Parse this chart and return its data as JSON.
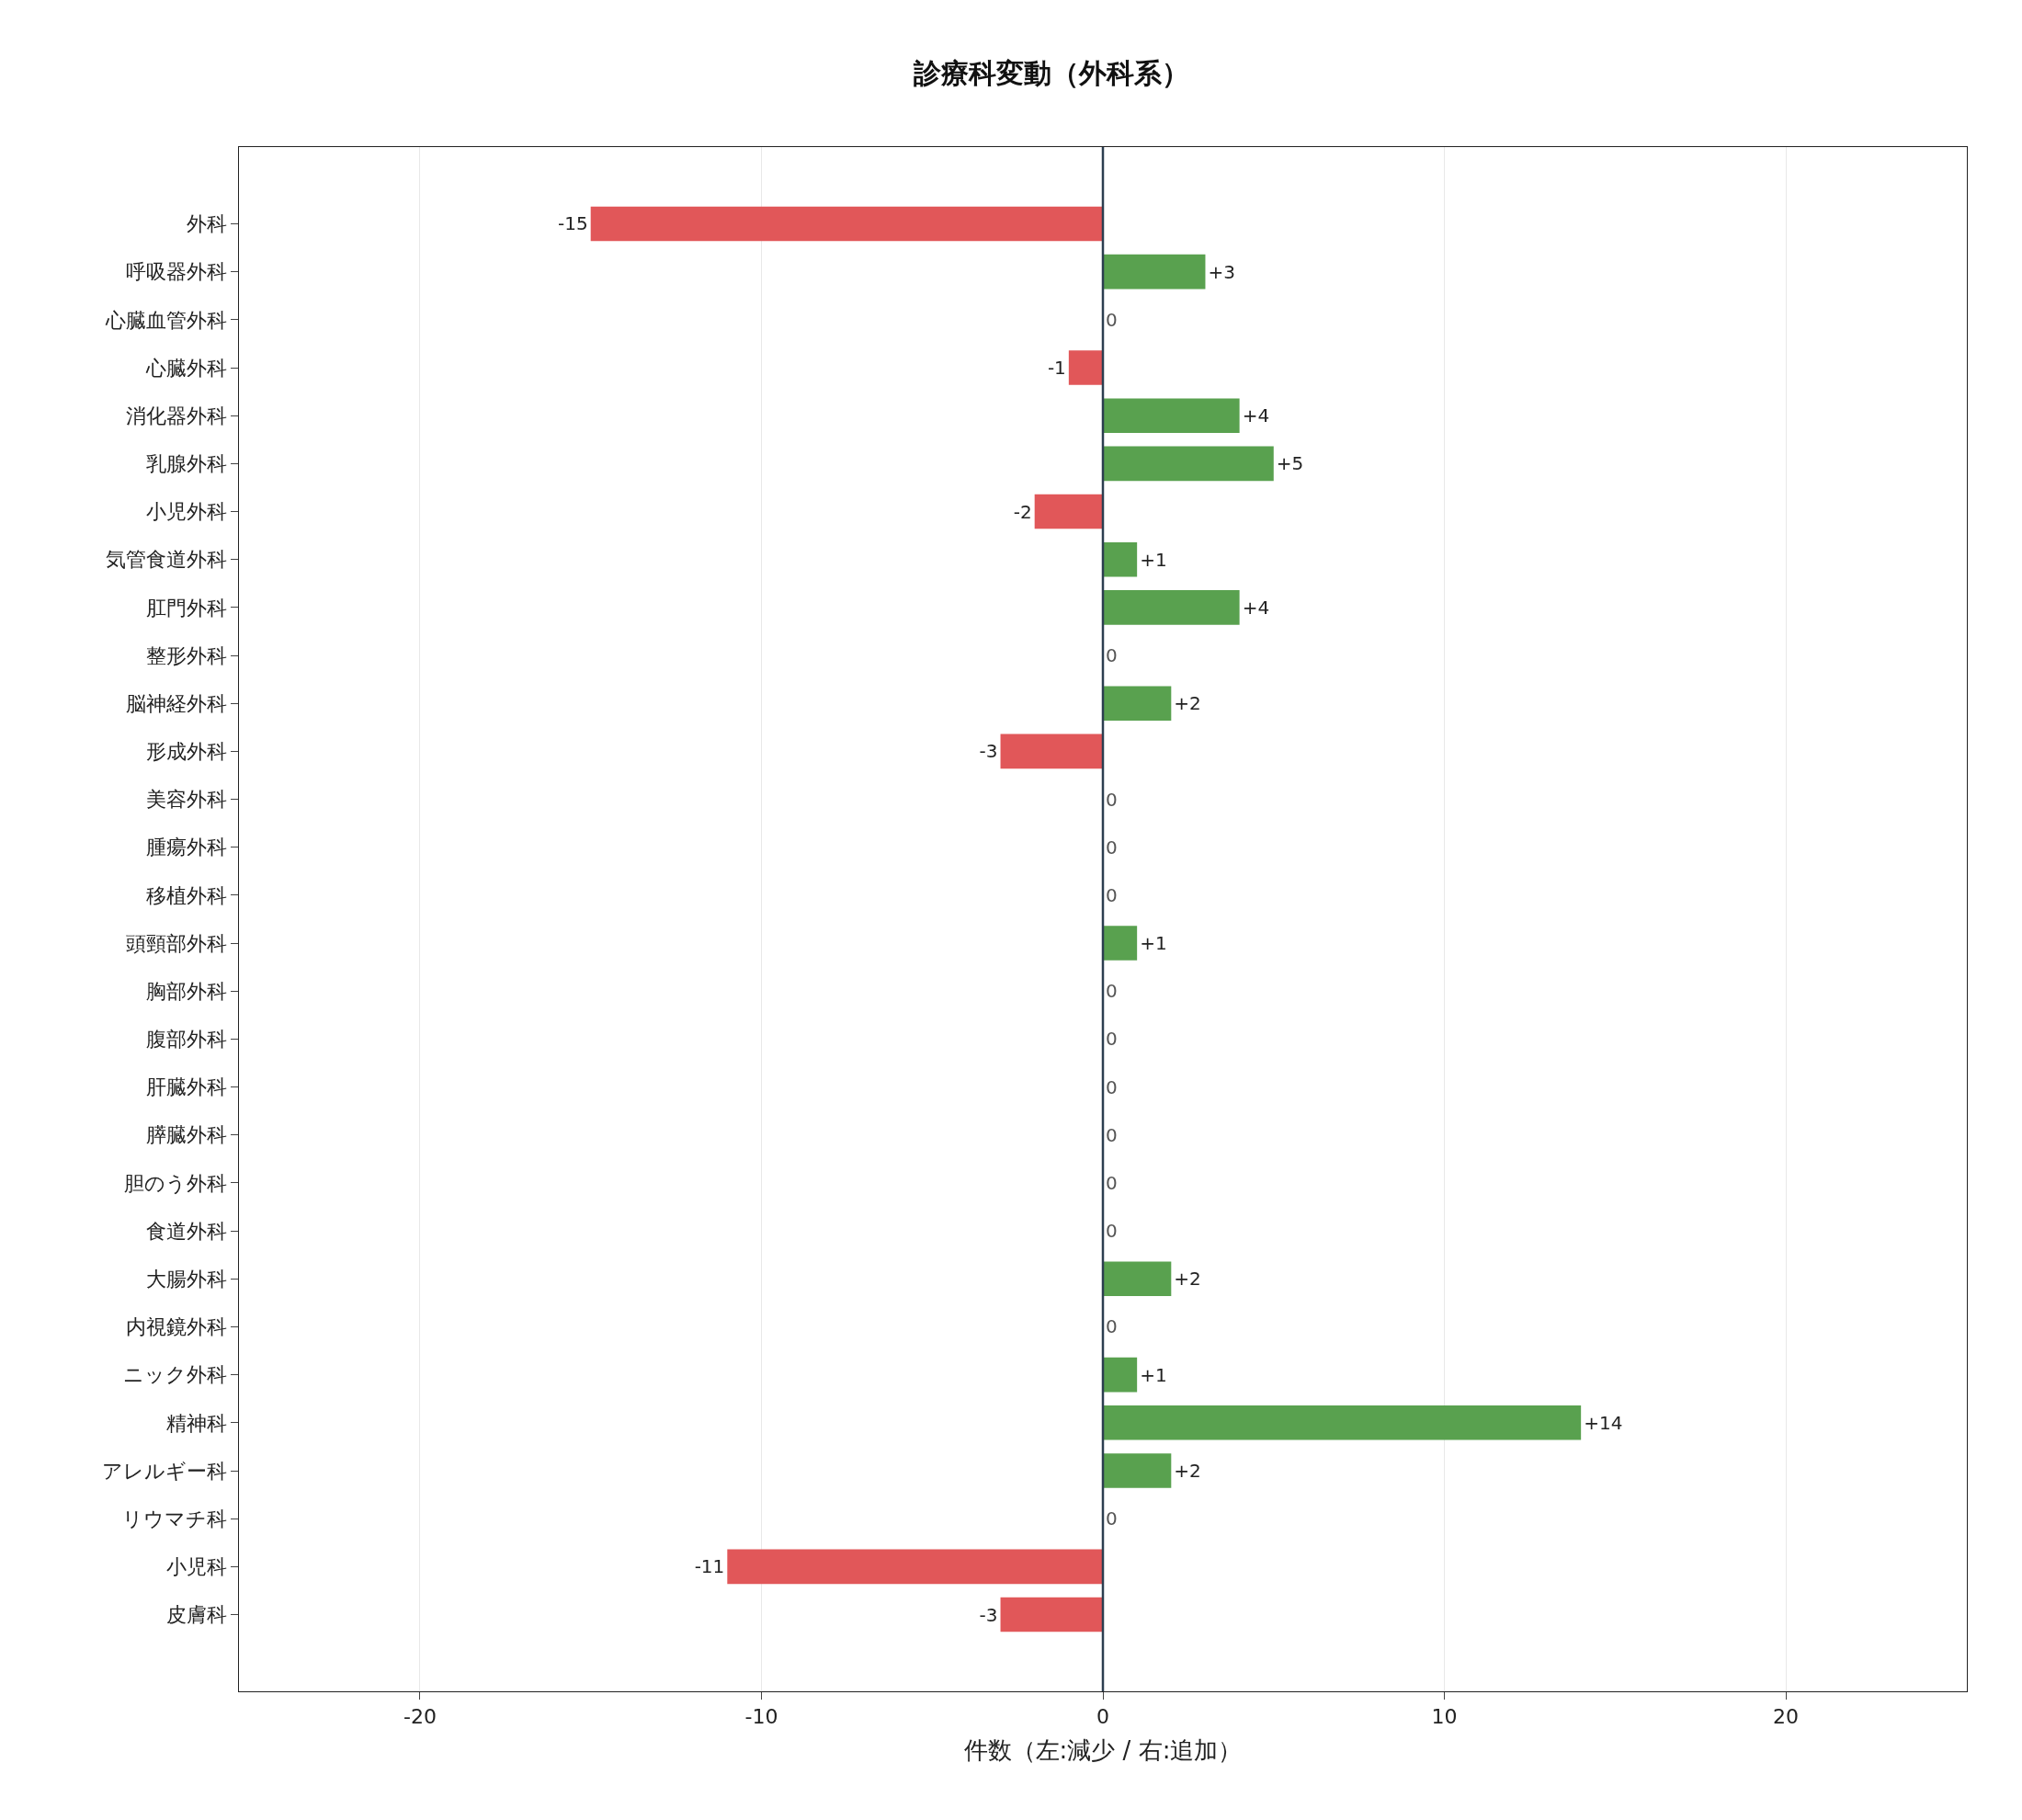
{
  "chart_data": {
    "type": "bar",
    "orientation": "horizontal",
    "title": "診療科変動（外科系）",
    "xlabel": "件数（左:減少 / 右:追加）",
    "categories": [
      "外科",
      "呼吸器外科",
      "心臓血管外科",
      "心臓外科",
      "消化器外科",
      "乳腺外科",
      "小児外科",
      "気管食道外科",
      "肛門外科",
      "整形外科",
      "脳神経外科",
      "形成外科",
      "美容外科",
      "腫瘍外科",
      "移植外科",
      "頭頸部外科",
      "胸部外科",
      "腹部外科",
      "肝臓外科",
      "膵臓外科",
      "胆のう外科",
      "食道外科",
      "大腸外科",
      "内視鏡外科",
      "ニック外科",
      "精神科",
      "アレルギー科",
      "リウマチ科",
      "小児科",
      "皮膚科"
    ],
    "values": [
      -15,
      3,
      0,
      -1,
      4,
      5,
      -2,
      1,
      4,
      0,
      2,
      -3,
      0,
      0,
      0,
      1,
      0,
      0,
      0,
      0,
      0,
      0,
      2,
      0,
      1,
      14,
      2,
      0,
      -11,
      -3
    ],
    "value_labels": [
      "-15",
      "+3",
      "0",
      "-1",
      "+4",
      "+5",
      "-2",
      "+1",
      "+4",
      "0",
      "+2",
      "-3",
      "0",
      "0",
      "0",
      "+1",
      "0",
      "0",
      "0",
      "0",
      "0",
      "0",
      "+2",
      "0",
      "+1",
      "+14",
      "+2",
      "0",
      "-11",
      "-3"
    ],
    "colors": [
      "#e15759",
      "#59a14f",
      "#59a14f",
      "#e15759",
      "#59a14f",
      "#59a14f",
      "#e15759",
      "#59a14f",
      "#59a14f",
      "#59a14f",
      "#59a14f",
      "#e15759",
      "#59a14f",
      "#59a14f",
      "#59a14f",
      "#59a14f",
      "#59a14f",
      "#59a14f",
      "#59a14f",
      "#59a14f",
      "#59a14f",
      "#59a14f",
      "#59a14f",
      "#59a14f",
      "#59a14f",
      "#59a14f",
      "#59a14f",
      "#59a14f",
      "#e15759",
      "#e15759"
    ],
    "xlim": [
      -25.3,
      25.3
    ],
    "xticks": [
      -20,
      -10,
      0,
      10,
      20
    ],
    "ref_lines": [
      {
        "axis": "x",
        "value": 0,
        "color": "#2c3e50"
      }
    ],
    "grid": "x"
  }
}
